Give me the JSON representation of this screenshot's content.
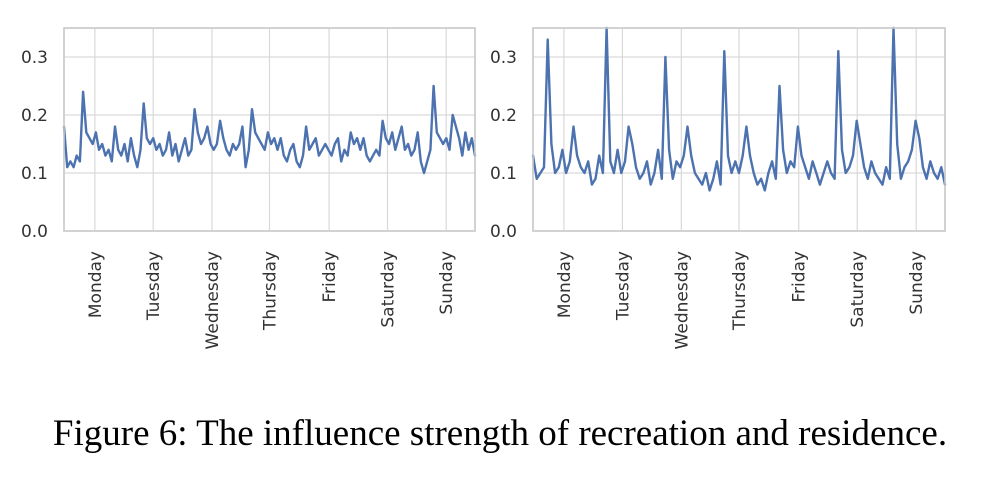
{
  "figure": {
    "caption": "Figure 6: The influence strength of recreation and residence."
  },
  "chart_data": [
    {
      "type": "line",
      "title": "",
      "xlabel": "",
      "ylabel": "",
      "ylim": [
        0,
        0.35
      ],
      "yticks": [
        "0.0",
        "0.1",
        "0.2",
        "0.3"
      ],
      "xticks": [
        "Monday",
        "Tuesday",
        "Wednesday",
        "Thursday",
        "Friday",
        "Saturday",
        "Sunday"
      ],
      "grid": true,
      "line_color": "#4c72b0",
      "series": [
        {
          "values": [
            0.18,
            0.11,
            0.12,
            0.11,
            0.13,
            0.12,
            0.24,
            0.17,
            0.16,
            0.15,
            0.17,
            0.14,
            0.15,
            0.13,
            0.14,
            0.12,
            0.18,
            0.14,
            0.13,
            0.15,
            0.12,
            0.16,
            0.13,
            0.11,
            0.14,
            0.22,
            0.16,
            0.15,
            0.16,
            0.14,
            0.15,
            0.13,
            0.14,
            0.17,
            0.13,
            0.15,
            0.12,
            0.14,
            0.16,
            0.13,
            0.14,
            0.21,
            0.17,
            0.15,
            0.16,
            0.18,
            0.15,
            0.14,
            0.15,
            0.19,
            0.16,
            0.14,
            0.13,
            0.15,
            0.14,
            0.15,
            0.18,
            0.11,
            0.14,
            0.21,
            0.17,
            0.16,
            0.15,
            0.14,
            0.17,
            0.15,
            0.16,
            0.14,
            0.16,
            0.13,
            0.12,
            0.14,
            0.15,
            0.12,
            0.11,
            0.13,
            0.18,
            0.14,
            0.15,
            0.16,
            0.13,
            0.14,
            0.15,
            0.14,
            0.13,
            0.15,
            0.16,
            0.12,
            0.14,
            0.13,
            0.17,
            0.15,
            0.16,
            0.14,
            0.16,
            0.13,
            0.12,
            0.13,
            0.14,
            0.13,
            0.19,
            0.16,
            0.15,
            0.17,
            0.14,
            0.16,
            0.18,
            0.14,
            0.15,
            0.13,
            0.14,
            0.17,
            0.12,
            0.1,
            0.12,
            0.14,
            0.25,
            0.17,
            0.16,
            0.15,
            0.16,
            0.14,
            0.2,
            0.18,
            0.16,
            0.13,
            0.17,
            0.14,
            0.16,
            0.13
          ]
        }
      ]
    },
    {
      "type": "line",
      "title": "",
      "xlabel": "",
      "ylabel": "",
      "ylim": [
        0,
        0.35
      ],
      "yticks": [
        "0.0",
        "0.1",
        "0.2",
        "0.3"
      ],
      "xticks": [
        "Monday",
        "Tuesday",
        "Wednesday",
        "Thursday",
        "Friday",
        "Saturday",
        "Sunday"
      ],
      "grid": true,
      "line_color": "#4c72b0",
      "series": [
        {
          "values": [
            0.13,
            0.09,
            0.1,
            0.11,
            0.33,
            0.15,
            0.1,
            0.11,
            0.14,
            0.1,
            0.12,
            0.18,
            0.13,
            0.11,
            0.1,
            0.12,
            0.08,
            0.09,
            0.13,
            0.1,
            0.35,
            0.12,
            0.1,
            0.14,
            0.1,
            0.12,
            0.18,
            0.15,
            0.11,
            0.09,
            0.1,
            0.12,
            0.08,
            0.1,
            0.14,
            0.09,
            0.3,
            0.14,
            0.09,
            0.12,
            0.11,
            0.13,
            0.18,
            0.13,
            0.1,
            0.09,
            0.08,
            0.1,
            0.07,
            0.09,
            0.12,
            0.08,
            0.31,
            0.13,
            0.1,
            0.12,
            0.1,
            0.13,
            0.18,
            0.13,
            0.1,
            0.08,
            0.09,
            0.07,
            0.1,
            0.12,
            0.09,
            0.25,
            0.14,
            0.1,
            0.12,
            0.11,
            0.18,
            0.13,
            0.11,
            0.09,
            0.12,
            0.1,
            0.08,
            0.1,
            0.12,
            0.1,
            0.09,
            0.31,
            0.14,
            0.1,
            0.11,
            0.13,
            0.19,
            0.15,
            0.11,
            0.09,
            0.12,
            0.1,
            0.09,
            0.08,
            0.11,
            0.09,
            0.35,
            0.15,
            0.09,
            0.11,
            0.12,
            0.14,
            0.19,
            0.16,
            0.11,
            0.09,
            0.12,
            0.1,
            0.09,
            0.11,
            0.08
          ]
        }
      ]
    }
  ]
}
